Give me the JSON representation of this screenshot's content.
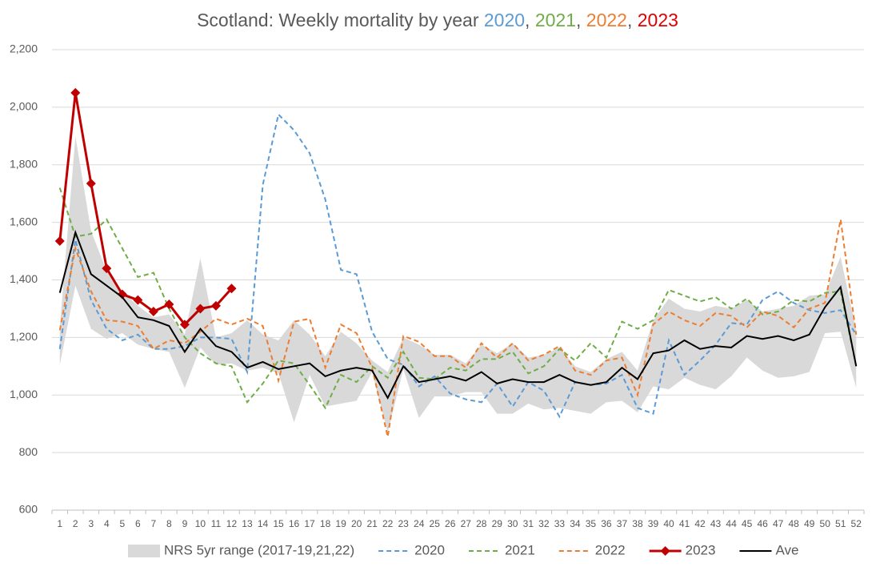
{
  "chart_data": {
    "type": "line",
    "title_parts": [
      {
        "text": "Scotland: Weekly mortality by year ",
        "color": "#595959"
      },
      {
        "text": "2020",
        "color": "#5b9bd5"
      },
      {
        "text": ", ",
        "color": "#595959"
      },
      {
        "text": "2021",
        "color": "#70ad47"
      },
      {
        "text": ", ",
        "color": "#595959"
      },
      {
        "text": "2022",
        "color": "#ed7d31"
      },
      {
        "text": ", ",
        "color": "#595959"
      },
      {
        "text": "2023",
        "color": "#e00000"
      }
    ],
    "categories": [
      "1",
      "2",
      "3",
      "4",
      "5",
      "6",
      "7",
      "8",
      "9",
      "10",
      "11",
      "12",
      "13",
      "14",
      "15",
      "16",
      "17",
      "18",
      "19",
      "20",
      "21",
      "22",
      "23",
      "24",
      "25",
      "26",
      "27",
      "28",
      "29",
      "30",
      "31",
      "32",
      "33",
      "34",
      "35",
      "36",
      "37",
      "38",
      "39",
      "40",
      "41",
      "42",
      "43",
      "44",
      "45",
      "46",
      "47",
      "48",
      "49",
      "50",
      "51",
      "52"
    ],
    "ylim": [
      600,
      2200
    ],
    "yticks": [
      600,
      800,
      {
        "value": 1000,
        "label": "1,000"
      },
      {
        "value": 1200,
        "label": "1,200"
      },
      {
        "value": 1400,
        "label": "1,400"
      },
      {
        "value": 1600,
        "label": "1,600"
      },
      {
        "value": 1800,
        "label": "1,800"
      },
      {
        "value": 2000,
        "label": "2,000"
      },
      {
        "value": 2200,
        "label": "2,200"
      }
    ],
    "grid": true,
    "legend": "bottom",
    "range": {
      "name": "NRS 5yr range (2017-19,21,22)",
      "color": "#d9d9d9",
      "low": [
        1105,
        1380,
        1230,
        1195,
        1215,
        1175,
        1160,
        1150,
        1025,
        1165,
        1105,
        1110,
        1085,
        1095,
        1075,
        905,
        1070,
        960,
        970,
        980,
        1080,
        870,
        1090,
        920,
        995,
        995,
        1010,
        1010,
        935,
        935,
        970,
        950,
        955,
        945,
        935,
        975,
        980,
        940,
        1030,
        1020,
        1060,
        1035,
        1020,
        1065,
        1130,
        1085,
        1060,
        1065,
        1080,
        1215,
        1220,
        1025
      ],
      "high": [
        1235,
        1900,
        1570,
        1430,
        1360,
        1310,
        1270,
        1280,
        1210,
        1475,
        1200,
        1215,
        1260,
        1210,
        1190,
        1260,
        1210,
        1135,
        1220,
        1180,
        1120,
        1080,
        1200,
        1175,
        1140,
        1140,
        1110,
        1175,
        1145,
        1180,
        1130,
        1140,
        1165,
        1100,
        1080,
        1125,
        1150,
        1085,
        1260,
        1335,
        1300,
        1290,
        1310,
        1300,
        1330,
        1290,
        1300,
        1310,
        1345,
        1350,
        1480,
        1225
      ]
    },
    "series": [
      {
        "name": "2020",
        "color": "#5b9bd5",
        "dash": true,
        "values": [
          1160,
          1540,
          1330,
          1230,
          1190,
          1210,
          1160,
          1160,
          1170,
          1200,
          1200,
          1195,
          1080,
          1730,
          1975,
          1920,
          1840,
          1680,
          1435,
          1420,
          1220,
          1125,
          1105,
          1030,
          1065,
          1005,
          985,
          975,
          1040,
          960,
          1045,
          1015,
          925,
          1045,
          1035,
          1040,
          1070,
          955,
          935,
          1190,
          1070,
          1120,
          1175,
          1250,
          1245,
          1330,
          1360,
          1320,
          1295,
          1285,
          1295,
          1210
        ]
      },
      {
        "name": "2021",
        "color": "#70ad47",
        "dash": true,
        "values": [
          1720,
          1550,
          1560,
          1610,
          1510,
          1410,
          1425,
          1300,
          1200,
          1145,
          1110,
          1100,
          975,
          1040,
          1120,
          1110,
          1035,
          955,
          1070,
          1045,
          1100,
          1060,
          1150,
          1060,
          1055,
          1095,
          1085,
          1125,
          1125,
          1150,
          1075,
          1100,
          1160,
          1120,
          1180,
          1130,
          1255,
          1230,
          1260,
          1365,
          1345,
          1325,
          1340,
          1300,
          1335,
          1280,
          1290,
          1330,
          1325,
          1355,
          1360,
          1100
        ]
      },
      {
        "name": "2022",
        "color": "#ed7d31",
        "dash": true,
        "values": [
          1225,
          1510,
          1360,
          1260,
          1255,
          1240,
          1160,
          1190,
          1180,
          1220,
          1265,
          1245,
          1265,
          1240,
          1050,
          1255,
          1265,
          1095,
          1245,
          1215,
          1095,
          855,
          1205,
          1185,
          1135,
          1135,
          1095,
          1180,
          1130,
          1180,
          1120,
          1140,
          1170,
          1085,
          1070,
          1120,
          1130,
          1000,
          1245,
          1290,
          1260,
          1240,
          1285,
          1275,
          1235,
          1290,
          1275,
          1235,
          1300,
          1320,
          1610,
          1210
        ]
      },
      {
        "name": "2023",
        "color": "#c00000",
        "marker": "diamond",
        "values": [
          1535,
          2050,
          1735,
          1440,
          1350,
          1330,
          1290,
          1315,
          1245,
          1300,
          1310,
          1370,
          null,
          null,
          null,
          null,
          null,
          null,
          null,
          null,
          null,
          null,
          null,
          null,
          null,
          null,
          null,
          null,
          null,
          null,
          null,
          null,
          null,
          null,
          null,
          null,
          null,
          null,
          null,
          null,
          null,
          null,
          null,
          null,
          null,
          null,
          null,
          null,
          null,
          null,
          null,
          null
        ]
      },
      {
        "name": "Ave",
        "color": "#000000",
        "values": [
          1355,
          1565,
          1420,
          1380,
          1340,
          1270,
          1260,
          1240,
          1150,
          1230,
          1170,
          1150,
          1095,
          1115,
          1090,
          1100,
          1110,
          1065,
          1085,
          1095,
          1085,
          990,
          1100,
          1045,
          1055,
          1065,
          1050,
          1080,
          1040,
          1055,
          1045,
          1045,
          1070,
          1045,
          1035,
          1045,
          1095,
          1055,
          1145,
          1155,
          1190,
          1160,
          1170,
          1165,
          1205,
          1195,
          1205,
          1190,
          1210,
          1305,
          1375,
          1100
        ]
      }
    ]
  }
}
